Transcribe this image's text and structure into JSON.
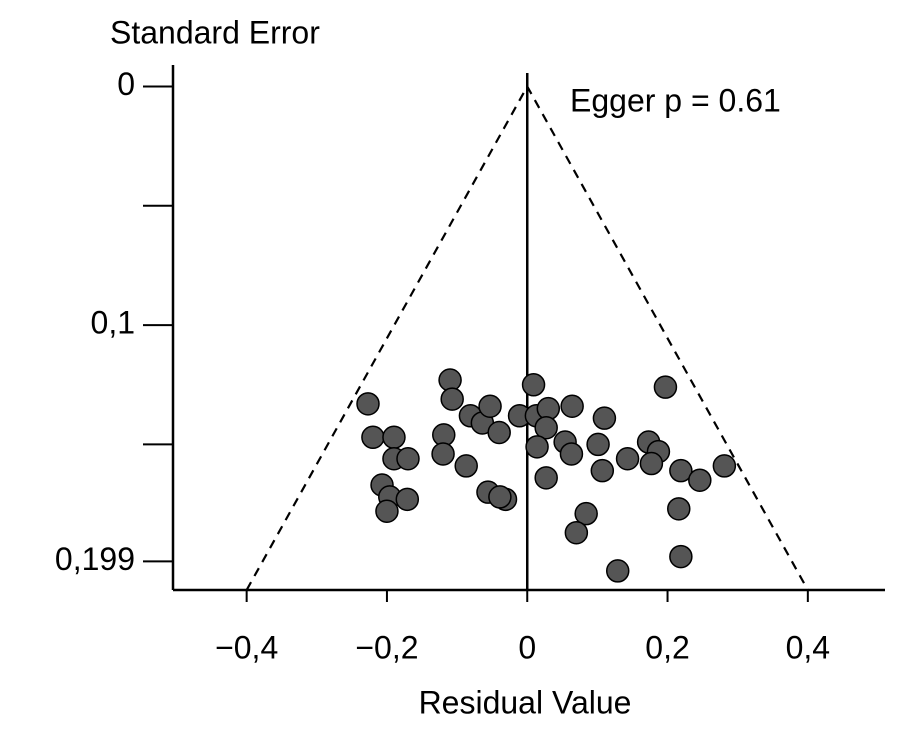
{
  "chart_data": {
    "type": "scatter",
    "y_title": "Standard Error",
    "x_title": "Residual Value",
    "annotation": "Egger p = 0.61",
    "xlim": [
      -0.505,
      0.51
    ],
    "ylim": [
      -0.009,
      0.211
    ],
    "y_reversed": true,
    "xticks": [
      {
        "value": -0.4,
        "label": "−0,4"
      },
      {
        "value": -0.2,
        "label": "−0,2"
      },
      0,
      {
        "value": 0.2,
        "label": "0,2"
      },
      {
        "value": 0.4,
        "label": "0,4"
      }
    ],
    "yticks": [
      0,
      {
        "value": 0.05,
        "label": null
      },
      {
        "value": 0.1,
        "label": "0,1"
      },
      {
        "value": 0.15,
        "label": null
      },
      {
        "value": 0.199,
        "label": "0,199"
      }
    ],
    "vline": 0,
    "funnel": {
      "x": [
        -0.4,
        0,
        0.4
      ],
      "y": [
        0.211,
        0,
        0.211
      ],
      "color": "#000"
    },
    "series": [
      {
        "color": "#555555",
        "x": [
          -0.227,
          -0.22,
          -0.19,
          -0.19,
          -0.17,
          -0.207,
          -0.196,
          -0.171,
          -0.2,
          -0.11,
          -0.107,
          -0.119,
          -0.12,
          -0.087,
          -0.081,
          -0.064,
          -0.053,
          -0.04,
          -0.056,
          -0.031,
          -0.039,
          -0.011,
          0.009,
          0.013,
          0.03,
          0.027,
          0.014,
          0.054,
          0.063,
          0.064,
          0.027,
          0.11,
          0.101,
          0.107,
          0.084,
          0.07,
          0.143,
          0.129,
          0.197,
          0.173,
          0.187,
          0.177,
          0.219,
          0.246,
          0.281,
          0.216,
          0.219
        ],
        "values": [
          0.133,
          0.147,
          0.147,
          0.156,
          0.156,
          0.167,
          0.172,
          0.173,
          0.178,
          0.123,
          0.131,
          0.146,
          0.154,
          0.159,
          0.138,
          0.141,
          0.134,
          0.145,
          0.17,
          0.173,
          0.172,
          0.138,
          0.125,
          0.138,
          0.135,
          0.143,
          0.151,
          0.149,
          0.154,
          0.134,
          0.164,
          0.139,
          0.15,
          0.161,
          0.179,
          0.187,
          0.156,
          0.203,
          0.126,
          0.149,
          0.153,
          0.158,
          0.161,
          0.165,
          0.159,
          0.177,
          0.197
        ]
      }
    ]
  }
}
